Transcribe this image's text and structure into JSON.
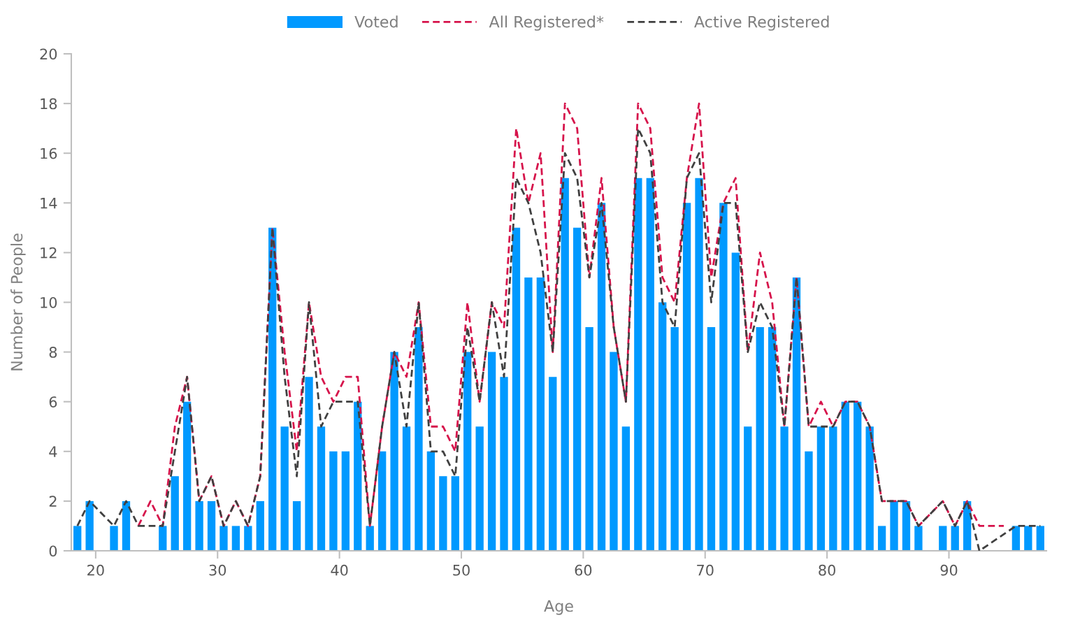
{
  "chart_data": {
    "type": "bar",
    "xlabel": "Age",
    "ylabel": "Number of People",
    "x": [
      18.5,
      19.5,
      20.5,
      21.5,
      22.5,
      23.5,
      24.5,
      25.5,
      26.5,
      27.5,
      28.5,
      29.5,
      30.5,
      31.5,
      32.5,
      33.5,
      34.5,
      35.5,
      36.5,
      37.5,
      38.5,
      39.5,
      40.5,
      41.5,
      42.5,
      43.5,
      44.5,
      45.5,
      46.5,
      47.5,
      48.5,
      49.5,
      50.5,
      51.5,
      52.5,
      53.5,
      54.5,
      55.5,
      56.5,
      57.5,
      58.5,
      59.5,
      60.5,
      61.5,
      62.5,
      63.5,
      64.5,
      65.5,
      66.5,
      67.5,
      68.5,
      69.5,
      70.5,
      71.5,
      72.5,
      73.5,
      74.5,
      75.5,
      76.5,
      77.5,
      78.5,
      79.5,
      80.5,
      81.5,
      82.5,
      83.5,
      84.5,
      85.5,
      86.5,
      87.5,
      88.5,
      89.5,
      90.5,
      91.5,
      92.5,
      93.5,
      94.5,
      95.5,
      96.5,
      97.5
    ],
    "series": [
      {
        "name": "Voted",
        "color": "#0099ff",
        "values": [
          1,
          2,
          0,
          1,
          2,
          0,
          0,
          1,
          3,
          6,
          2,
          2,
          1,
          1,
          1,
          2,
          13,
          5,
          2,
          7,
          5,
          4,
          4,
          6,
          1,
          4,
          8,
          5,
          9,
          4,
          3,
          3,
          8,
          5,
          8,
          7,
          13,
          11,
          11,
          7,
          15,
          13,
          9,
          14,
          8,
          5,
          15,
          15,
          10,
          9,
          14,
          15,
          9,
          14,
          12,
          5,
          9,
          9,
          5,
          11,
          4,
          5,
          5,
          6,
          6,
          5,
          1,
          2,
          2,
          1,
          0,
          1,
          1,
          2,
          0,
          0,
          0,
          1,
          1,
          1
        ]
      },
      {
        "name": "All Registered*",
        "type": "line",
        "color": "#d6134b",
        "line_style": "dashed",
        "values": [
          null,
          null,
          null,
          null,
          null,
          1,
          2,
          1,
          5,
          7,
          2,
          3,
          1,
          2,
          1,
          3,
          13,
          8,
          4,
          10,
          7,
          6,
          7,
          7,
          1,
          5,
          8,
          7,
          10,
          5,
          5,
          4,
          10,
          6,
          10,
          9,
          17,
          14,
          16,
          8,
          18,
          17,
          11,
          15,
          9,
          6,
          18,
          17,
          11,
          10,
          15,
          18,
          11,
          14,
          15,
          8,
          12,
          10,
          5,
          11,
          5,
          6,
          5,
          6,
          6,
          5,
          2,
          2,
          2,
          1,
          null,
          2,
          1,
          2,
          1,
          1,
          1,
          null,
          null,
          null
        ]
      },
      {
        "name": "Active Registered",
        "type": "line",
        "color": "#404040",
        "line_style": "dashed",
        "values": [
          1,
          2,
          null,
          1,
          2,
          1,
          1,
          1,
          4,
          7,
          2,
          3,
          1,
          2,
          1,
          3,
          13,
          7,
          3,
          10,
          5,
          6,
          6,
          6,
          1,
          5,
          8,
          5,
          10,
          4,
          4,
          3,
          9,
          6,
          10,
          7,
          15,
          14,
          12,
          8,
          16,
          15,
          11,
          14,
          9,
          6,
          17,
          16,
          10,
          9,
          15,
          16,
          10,
          14,
          14,
          8,
          10,
          9,
          5,
          11,
          5,
          5,
          5,
          6,
          6,
          5,
          2,
          2,
          2,
          1,
          null,
          2,
          1,
          2,
          0,
          null,
          null,
          1,
          1,
          1
        ]
      }
    ],
    "xlim": [
      18,
      98
    ],
    "xticks": [
      20,
      30,
      40,
      50,
      60,
      70,
      80,
      90
    ],
    "ylim": [
      0,
      20
    ],
    "yticks": [
      0,
      2,
      4,
      6,
      8,
      10,
      12,
      14,
      16,
      18,
      20
    ],
    "grid": false,
    "legend": "top"
  }
}
